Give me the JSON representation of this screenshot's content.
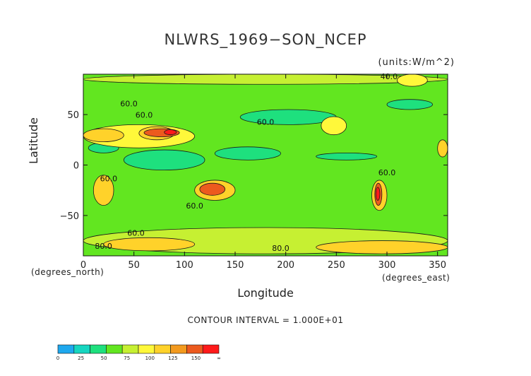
{
  "chart_data": {
    "type": "heatmap",
    "title": "NLWRS_1969−SON_NCEP",
    "units": "(units:W/m^2)",
    "xlabel": "Longitude",
    "ylabel": "Latitude",
    "x_note": "(degrees_east)",
    "y_note": "(degrees_north)",
    "xlim": [
      0,
      360
    ],
    "ylim": [
      -90,
      90
    ],
    "x_ticks": [
      0,
      50,
      100,
      150,
      200,
      250,
      300,
      350
    ],
    "y_ticks": [
      50,
      0,
      -50
    ],
    "contour_interval_text": "CONTOUR INTERVAL = 1.000E+01",
    "contour_labels": [
      {
        "text": "60.0",
        "lon": 45,
        "lat": 58
      },
      {
        "text": "60.0",
        "lon": 60,
        "lat": 47
      },
      {
        "text": "60.0",
        "lon": 180,
        "lat": 40
      },
      {
        "text": "60.0",
        "lon": 25,
        "lat": -16
      },
      {
        "text": "60.0",
        "lon": 110,
        "lat": -43
      },
      {
        "text": "60.0",
        "lon": 300,
        "lat": -10
      },
      {
        "text": "60.0",
        "lon": 52,
        "lat": -70
      },
      {
        "text": "80.0",
        "lon": 20,
        "lat": -83
      },
      {
        "text": "80.0",
        "lon": 195,
        "lat": -85
      },
      {
        "text": "40.0",
        "lon": 302,
        "lat": 85
      }
    ],
    "colorbar": {
      "ticks": [
        "0",
        "25",
        "50",
        "75",
        "100",
        "125",
        "150",
        "∞"
      ],
      "colors": [
        "#1ea8ee",
        "#16d6c0",
        "#1ee07e",
        "#62e620",
        "#c6f032",
        "#fff83a",
        "#ffd22a",
        "#f39a1e",
        "#ec5a1e",
        "#ff1a1a"
      ]
    },
    "regions": [
      {
        "level": 55,
        "lon_min": 0,
        "lon_max": 360,
        "lat_min": -90,
        "lat_max": 90
      },
      {
        "level": 45,
        "lon_min": 40,
        "lon_max": 120,
        "lat_min": -5,
        "lat_max": 15
      },
      {
        "level": 45,
        "lon_min": 130,
        "lon_max": 195,
        "lat_min": 5,
        "lat_max": 18
      },
      {
        "level": 45,
        "lon_min": 155,
        "lon_max": 250,
        "lat_min": 40,
        "lat_max": 55
      },
      {
        "level": 45,
        "lon_min": 230,
        "lon_max": 290,
        "lat_min": 5,
        "lat_max": 12
      },
      {
        "level": 45,
        "lon_min": 5,
        "lon_max": 35,
        "lat_min": 12,
        "lat_max": 22
      },
      {
        "level": 45,
        "lon_min": 300,
        "lon_max": 345,
        "lat_min": 55,
        "lat_max": 65
      },
      {
        "level": 70,
        "lon_min": 0,
        "lon_max": 360,
        "lat_min": -88,
        "lat_max": -62
      },
      {
        "level": 70,
        "lon_min": 0,
        "lon_max": 360,
        "lat_min": 80,
        "lat_max": 90
      },
      {
        "level": 95,
        "lon_min": 0,
        "lon_max": 110,
        "lat_min": 17,
        "lat_max": 40
      },
      {
        "level": 95,
        "lon_min": 235,
        "lon_max": 260,
        "lat_min": 30,
        "lat_max": 48
      },
      {
        "level": 95,
        "lon_min": 310,
        "lon_max": 340,
        "lat_min": 78,
        "lat_max": 90
      },
      {
        "level": 115,
        "lon_min": 0,
        "lon_max": 40,
        "lat_min": 23,
        "lat_max": 36
      },
      {
        "level": 115,
        "lon_min": 55,
        "lon_max": 90,
        "lat_min": 25,
        "lat_max": 38
      },
      {
        "level": 115,
        "lon_min": 10,
        "lon_max": 30,
        "lat_min": -40,
        "lat_max": -10
      },
      {
        "level": 115,
        "lon_min": 110,
        "lon_max": 150,
        "lat_min": -35,
        "lat_max": -15
      },
      {
        "level": 115,
        "lon_min": 285,
        "lon_max": 300,
        "lat_min": -45,
        "lat_max": -15
      },
      {
        "level": 115,
        "lon_min": 350,
        "lon_max": 360,
        "lat_min": 8,
        "lat_max": 25
      },
      {
        "level": 115,
        "lon_min": 20,
        "lon_max": 110,
        "lat_min": -85,
        "lat_max": -72
      },
      {
        "level": 115,
        "lon_min": 230,
        "lon_max": 360,
        "lat_min": -88,
        "lat_max": -75
      },
      {
        "level": 140,
        "lon_min": 60,
        "lon_max": 95,
        "lat_min": 28,
        "lat_max": 36
      },
      {
        "level": 140,
        "lon_min": 115,
        "lon_max": 140,
        "lat_min": -30,
        "lat_max": -18
      },
      {
        "level": 140,
        "lon_min": 288,
        "lon_max": 295,
        "lat_min": -40,
        "lat_max": -18
      },
      {
        "level": 160,
        "lon_min": 80,
        "lon_max": 92,
        "lat_min": 30,
        "lat_max": 35
      },
      {
        "level": 160,
        "lon_min": 289,
        "lon_max": 293,
        "lat_min": -35,
        "lat_max": -22
      }
    ]
  }
}
